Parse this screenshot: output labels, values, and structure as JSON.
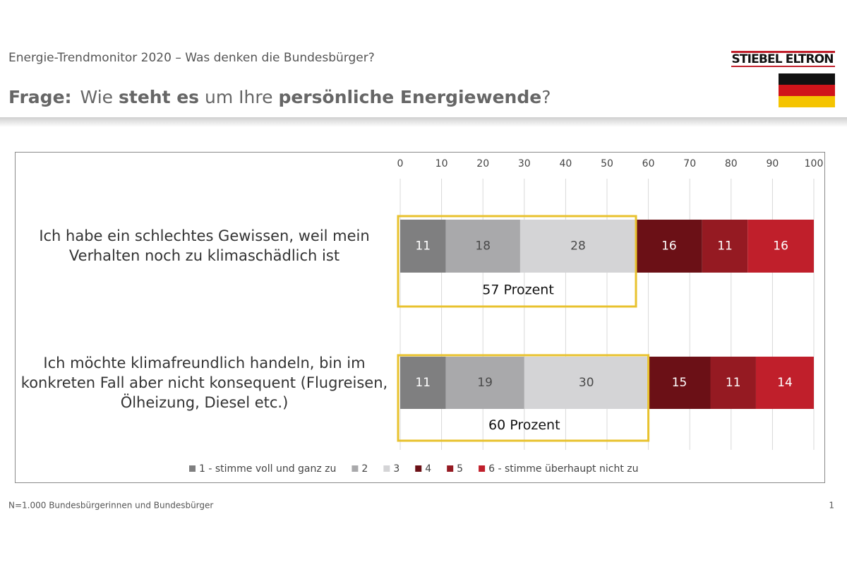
{
  "header": {
    "subtitle": "Energie-Trendmonitor 2020 – Was denken die Bundesbürger?",
    "question_parts": [
      "Frage:",
      "Wie",
      "steht es",
      "um Ihre",
      "persönliche Energiewende",
      "?"
    ],
    "logo": "STIEBEL ELTRON"
  },
  "footer": {
    "note": "N=1.000 Bundesbürgerinnen und Bundesbürger",
    "page": "1"
  },
  "chart_data": {
    "type": "stacked-bar-horizontal",
    "categories": [
      "Ich habe ein schlechtes Gewissen, weil mein Verhalten noch zu klimaschädlich ist",
      "Ich möchte klimafreundlich handeln, bin im konkreten Fall aber nicht konsequent (Flugreisen, Ölheizung, Diesel etc.)"
    ],
    "series": [
      {
        "name": "1 - stimme voll und ganz zu",
        "color": "#7f7f80",
        "label_color": "#ffffff",
        "values": [
          11,
          11
        ]
      },
      {
        "name": "2",
        "color": "#a9a9ab",
        "label_color": "#4a4a4a",
        "values": [
          18,
          19
        ]
      },
      {
        "name": "3",
        "color": "#d4d4d6",
        "label_color": "#4a4a4a",
        "values": [
          28,
          30
        ]
      },
      {
        "name": "4",
        "color": "#6b1016",
        "label_color": "#ffffff",
        "values": [
          16,
          15
        ]
      },
      {
        "name": "5",
        "color": "#951a22",
        "label_color": "#ffffff",
        "values": [
          11,
          11
        ]
      },
      {
        "name": "6 - stimme überhaupt nicht zu",
        "color": "#c01f2b",
        "label_color": "#ffffff",
        "values": [
          16,
          14
        ]
      }
    ],
    "annotations": [
      {
        "label": "57 Prozent",
        "value": 57
      },
      {
        "label": "60 Prozent",
        "value": 60
      }
    ],
    "annotation_color": "#e8c22e",
    "xlim": [
      0,
      100
    ],
    "xticks": [
      0,
      10,
      20,
      30,
      40,
      50,
      60,
      70,
      80,
      90,
      100
    ],
    "grid": true,
    "legend": "bottom"
  }
}
